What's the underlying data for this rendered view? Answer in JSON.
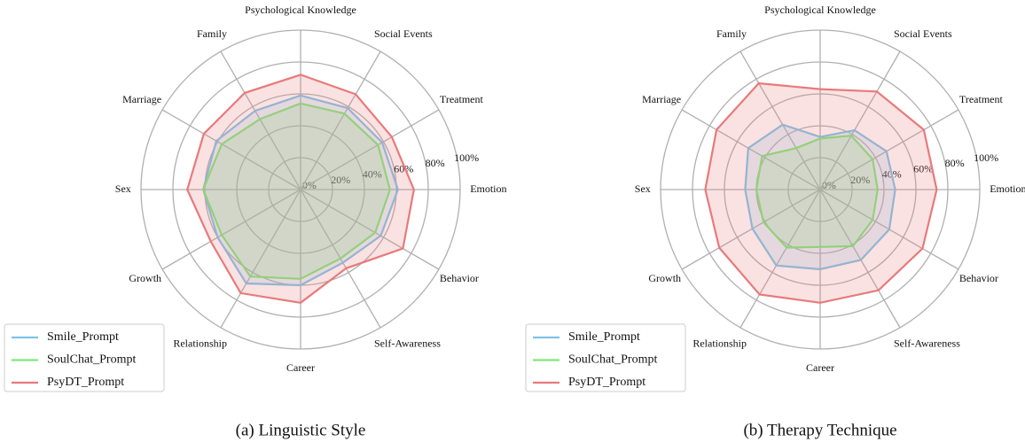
{
  "chart_data": [
    {
      "type": "radar",
      "title": "(a) Linguistic Style",
      "categories": [
        "Psychological Knowledge",
        "Social Events",
        "Treatment",
        "Emotion",
        "Behavior",
        "Self-Awareness",
        "Career",
        "Relationship",
        "Growth",
        "Sex",
        "Marriage",
        "Family"
      ],
      "rlim": [
        0,
        100
      ],
      "rticks": [
        {
          "value": 0,
          "label": "0%"
        },
        {
          "value": 20,
          "label": "20%"
        },
        {
          "value": 40,
          "label": "40%"
        },
        {
          "value": 60,
          "label": "60%"
        },
        {
          "value": 80,
          "label": "80%"
        },
        {
          "value": 100,
          "label": "100%"
        }
      ],
      "grid": true,
      "legend": "lower left",
      "series": [
        {
          "name": "Smile_Prompt",
          "color": "#7ec4e8",
          "values": [
            59,
            59,
            59,
            61,
            58,
            53,
            60,
            68,
            60,
            61,
            61,
            57
          ]
        },
        {
          "name": "SoulChat_Prompt",
          "color": "#7de87a",
          "values": [
            54,
            55,
            56,
            56,
            54,
            50,
            56,
            63,
            57,
            61,
            57,
            51
          ]
        },
        {
          "name": "PsyDT_Prompt",
          "color": "#e87a7a",
          "values": [
            72,
            69,
            66,
            71,
            74,
            57,
            71,
            75,
            65,
            71,
            70,
            70
          ]
        }
      ]
    },
    {
      "type": "radar",
      "title": "(b) Therapy Technique",
      "categories": [
        "Psychological Knowledge",
        "Social Events",
        "Treatment",
        "Emotion",
        "Behavior",
        "Self-Awareness",
        "Career",
        "Relationship",
        "Growth",
        "Sex",
        "Marriage",
        "Family"
      ],
      "rlim": [
        0,
        100
      ],
      "rticks": [
        {
          "value": 0,
          "label": "0%"
        },
        {
          "value": 20,
          "label": "20%"
        },
        {
          "value": 40,
          "label": "40%"
        },
        {
          "value": 60,
          "label": "60%"
        },
        {
          "value": 80,
          "label": "80%"
        },
        {
          "value": 100,
          "label": "100%"
        }
      ],
      "grid": true,
      "legend": "lower left",
      "series": [
        {
          "name": "Smile_Prompt",
          "color": "#7ec4e8",
          "values": [
            33,
            43,
            48,
            47,
            50,
            51,
            50,
            55,
            49,
            47,
            52,
            47
          ]
        },
        {
          "name": "SoulChat_Prompt",
          "color": "#7de87a",
          "values": [
            32,
            39,
            38,
            36,
            38,
            41,
            36,
            42,
            41,
            40,
            42,
            30
          ]
        },
        {
          "name": "PsyDT_Prompt",
          "color": "#e87a7a",
          "values": [
            63,
            71,
            75,
            73,
            74,
            73,
            71,
            76,
            73,
            72,
            75,
            77
          ]
        }
      ]
    }
  ]
}
